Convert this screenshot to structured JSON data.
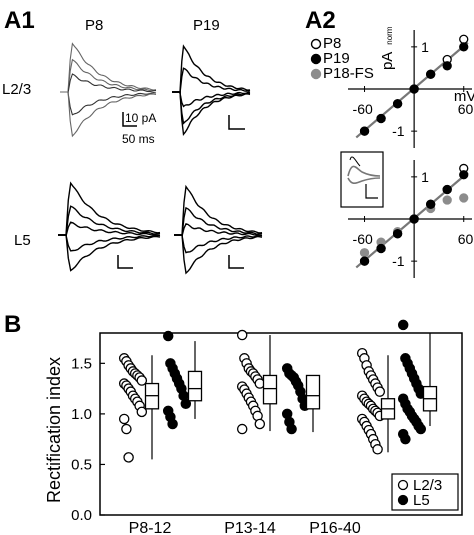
{
  "panels": {
    "a1": "A1",
    "a2": "A2",
    "b": "B"
  },
  "a1": {
    "col_left": "P8",
    "col_right": "P19",
    "row_top": "L2/3",
    "row_bottom": "L5",
    "scale_current": "10 pA",
    "scale_time": "50 ms"
  },
  "a2": {
    "ylabel": "pA",
    "ylabel_sub": "norm",
    "xlabel": "mV",
    "legend": [
      {
        "label": "P8",
        "style": "open",
        "color": "#000000"
      },
      {
        "label": "P19",
        "style": "filled",
        "color": "#000000"
      },
      {
        "label": "P18-FS",
        "style": "filled",
        "color": "#8c8c8c"
      }
    ],
    "xticks": [
      "-60",
      "60"
    ],
    "yticks": [
      "1",
      "-1"
    ],
    "top_plot": {
      "xlim": [
        -80,
        70
      ],
      "ylim": [
        -1.4,
        1.4
      ],
      "P8": [
        [
          -60,
          -1.0
        ],
        [
          -40,
          -0.7
        ],
        [
          -20,
          -0.35
        ],
        [
          0,
          0
        ],
        [
          20,
          0.35
        ],
        [
          40,
          0.7
        ],
        [
          60,
          1.18
        ]
      ],
      "P19": [
        [
          -60,
          -1.0
        ],
        [
          -40,
          -0.7
        ],
        [
          -20,
          -0.35
        ],
        [
          0,
          0
        ],
        [
          20,
          0.35
        ],
        [
          40,
          0.55
        ],
        [
          60,
          1.0
        ]
      ],
      "fit_line": [
        [
          -70,
          -1.15
        ],
        [
          65,
          1.1
        ]
      ]
    },
    "bottom_plot": {
      "xlim": [
        -80,
        70
      ],
      "ylim": [
        -1.4,
        1.4
      ],
      "P8": [
        [
          -60,
          -1.0
        ],
        [
          -40,
          -0.7
        ],
        [
          -20,
          -0.35
        ],
        [
          0,
          0
        ],
        [
          20,
          0.35
        ],
        [
          40,
          0.7
        ],
        [
          60,
          1.2
        ]
      ],
      "P19": [
        [
          -60,
          -1.0
        ],
        [
          -40,
          -0.7
        ],
        [
          -20,
          -0.35
        ],
        [
          0,
          0
        ],
        [
          20,
          0.35
        ],
        [
          40,
          0.7
        ],
        [
          60,
          1.05
        ]
      ],
      "P18-FS": [
        [
          -60,
          -0.8
        ],
        [
          -40,
          -0.55
        ],
        [
          -20,
          -0.3
        ],
        [
          0,
          0
        ],
        [
          20,
          0.25
        ],
        [
          40,
          0.45
        ],
        [
          60,
          0.5
        ]
      ],
      "fit_line": [
        [
          -70,
          -1.15
        ],
        [
          65,
          1.1
        ]
      ]
    }
  },
  "chart_data": {
    "type": "scatter",
    "ylabel": "Rectification index",
    "ylim": [
      0.0,
      1.8
    ],
    "yticks": [
      "0.0",
      "0.5",
      "1.0",
      "1.5"
    ],
    "categories": [
      "P8-12",
      "P13-14",
      "P16-40"
    ],
    "legend": [
      {
        "label": "L2/3",
        "style": "open"
      },
      {
        "label": "L5",
        "style": "filled"
      }
    ],
    "legend_position": "bottom-right",
    "series": [
      {
        "name": "L2/3",
        "values": [
          [
            1.55,
            1.52,
            1.48,
            1.45,
            1.42,
            1.4,
            1.38,
            1.36,
            1.33,
            1.3,
            1.28,
            1.25,
            1.22,
            1.18,
            1.15,
            1.12,
            1.08,
            1.02,
            0.95,
            0.85,
            0.57
          ],
          [
            1.78,
            1.55,
            1.5,
            1.45,
            1.42,
            1.4,
            1.37,
            1.34,
            1.3,
            1.27,
            1.24,
            1.2,
            1.16,
            1.12,
            1.08,
            1.03,
            0.98,
            0.9,
            0.85
          ],
          [
            1.6,
            1.55,
            1.48,
            1.42,
            1.38,
            1.34,
            1.3,
            1.26,
            1.22,
            1.18,
            1.15,
            1.12,
            1.1,
            1.08,
            1.05,
            1.03,
            1.01,
            0.98,
            0.95,
            0.92,
            0.88,
            0.84,
            0.8,
            0.75,
            0.7,
            0.65
          ]
        ],
        "box": [
          {
            "min": 0.55,
            "q1": 1.05,
            "median": 1.18,
            "q3": 1.3,
            "max": 1.58
          },
          {
            "min": 0.83,
            "q1": 1.1,
            "median": 1.25,
            "q3": 1.38,
            "max": 1.78
          },
          {
            "min": 0.62,
            "q1": 0.95,
            "median": 1.05,
            "q3": 1.15,
            "max": 1.58
          }
        ]
      },
      {
        "name": "L5",
        "values": [
          [
            1.77,
            1.5,
            1.45,
            1.4,
            1.35,
            1.3,
            1.25,
            1.18,
            1.1,
            1.03,
            0.97,
            0.9
          ],
          [
            1.45,
            1.4,
            1.38,
            1.36,
            1.32,
            1.28,
            1.22,
            1.15,
            1.08,
            1.0,
            0.92,
            0.85
          ],
          [
            1.88,
            1.55,
            1.5,
            1.45,
            1.4,
            1.35,
            1.3,
            1.25,
            1.2,
            1.15,
            1.1,
            1.05,
            1.02,
            0.98,
            0.95,
            0.92,
            0.88,
            0.85,
            0.8,
            0.75
          ]
        ],
        "box": [
          {
            "min": 0.95,
            "q1": 1.13,
            "median": 1.25,
            "q3": 1.42,
            "max": 1.72
          },
          {
            "min": 0.82,
            "q1": 1.05,
            "median": 1.18,
            "q3": 1.38,
            "max": 1.38
          },
          {
            "min": 0.88,
            "q1": 1.03,
            "median": 1.15,
            "q3": 1.27,
            "max": 1.8
          }
        ]
      }
    ]
  }
}
